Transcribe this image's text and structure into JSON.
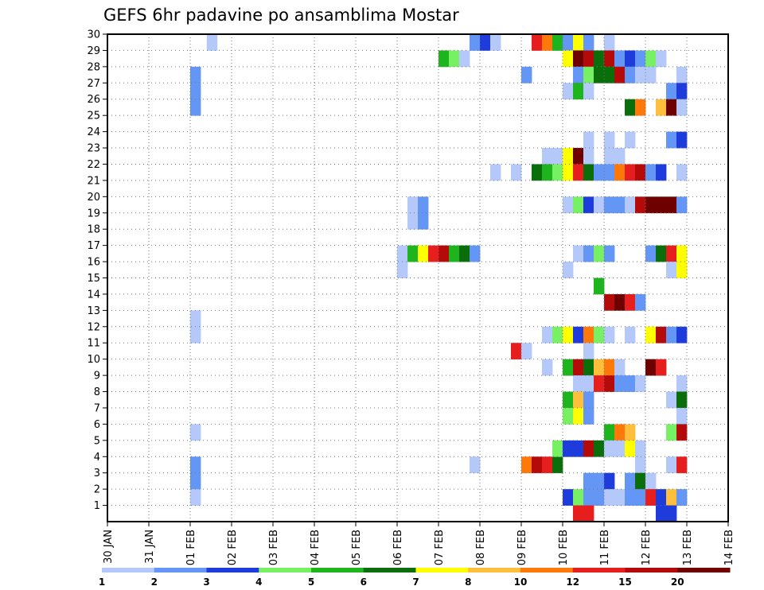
{
  "chart_data": {
    "type": "heatmap",
    "title": "GEFS 6hr padavine po ansamblima Mostar",
    "x_tick_labels": [
      "30 JAN",
      "31 JAN",
      "01 FEB",
      "02 FEB",
      "03 FEB",
      "04 FEB",
      "05 FEB",
      "06 FEB",
      "07 FEB",
      "08 FEB",
      "09 FEB",
      "10 FEB",
      "11 FEB",
      "12 FEB",
      "13 FEB",
      "14 FEB"
    ],
    "y_tick_labels": [
      "1",
      "2",
      "3",
      "4",
      "5",
      "6",
      "7",
      "8",
      "9",
      "10",
      "11",
      "12",
      "13",
      "14",
      "15",
      "16",
      "17",
      "18",
      "19",
      "20",
      "21",
      "22",
      "23",
      "24",
      "25",
      "26",
      "27",
      "28",
      "29",
      "30"
    ],
    "ylim": [
      0,
      30
    ],
    "grid": true,
    "colorbar": {
      "labels": [
        "1",
        "2",
        "3",
        "4",
        "5",
        "6",
        "7",
        "8",
        "10",
        "12",
        "15",
        "20"
      ],
      "colors": [
        "#b4c8fa",
        "#6496f5",
        "#1e3cdc",
        "#78f064",
        "#1eb41e",
        "#0a6e0a",
        "#ffff00",
        "#ffbe3c",
        "#ff780a",
        "#e61e1e",
        "#b40a0a",
        "#6e0000"
      ]
    },
    "cells": [
      [
        2.4,
        29,
        1
      ],
      [
        2.0,
        27,
        2
      ],
      [
        2.0,
        26,
        2
      ],
      [
        2.0,
        25,
        2
      ],
      [
        2.0,
        12,
        1
      ],
      [
        2.0,
        11,
        1
      ],
      [
        2.0,
        5,
        1
      ],
      [
        2.0,
        3,
        2
      ],
      [
        2.0,
        2,
        2
      ],
      [
        2.0,
        1,
        1
      ],
      [
        7.0,
        16,
        1
      ],
      [
        7.0,
        15,
        1
      ],
      [
        7.25,
        19,
        1
      ],
      [
        7.25,
        18,
        1
      ],
      [
        7.5,
        19,
        2
      ],
      [
        7.5,
        18,
        2
      ],
      [
        7.25,
        16,
        5
      ],
      [
        7.5,
        16,
        7
      ],
      [
        7.75,
        16,
        10
      ],
      [
        8.0,
        16,
        11
      ],
      [
        8.25,
        16,
        5
      ],
      [
        8.5,
        16,
        6
      ],
      [
        8.75,
        16,
        2
      ],
      [
        8.0,
        28,
        5
      ],
      [
        8.25,
        28,
        4
      ],
      [
        8.5,
        28,
        1
      ],
      [
        8.75,
        29,
        2
      ],
      [
        9.0,
        29,
        3
      ],
      [
        9.25,
        29,
        1
      ],
      [
        8.75,
        3,
        1
      ],
      [
        9.25,
        21,
        1
      ],
      [
        9.75,
        21,
        1
      ],
      [
        9.75,
        10,
        10
      ],
      [
        10.0,
        10,
        1
      ],
      [
        10.0,
        3,
        9
      ],
      [
        10.25,
        3,
        11
      ],
      [
        10.5,
        3,
        10
      ],
      [
        10.75,
        3,
        6
      ],
      [
        10.0,
        27,
        2
      ],
      [
        10.25,
        29,
        10
      ],
      [
        10.5,
        29,
        9
      ],
      [
        10.75,
        29,
        5
      ],
      [
        11.0,
        29,
        2
      ],
      [
        11.25,
        29,
        7
      ],
      [
        11.5,
        29,
        2
      ],
      [
        12.0,
        29,
        1
      ],
      [
        11.0,
        28,
        7
      ],
      [
        11.25,
        28,
        12
      ],
      [
        11.5,
        28,
        11
      ],
      [
        11.75,
        28,
        6
      ],
      [
        12.0,
        28,
        11
      ],
      [
        12.25,
        28,
        2
      ],
      [
        12.5,
        28,
        3
      ],
      [
        12.75,
        28,
        2
      ],
      [
        13.0,
        28,
        4
      ],
      [
        13.25,
        28,
        1
      ],
      [
        11.25,
        27,
        2
      ],
      [
        11.5,
        27,
        4
      ],
      [
        11.75,
        27,
        6
      ],
      [
        12.0,
        27,
        6
      ],
      [
        12.25,
        27,
        11
      ],
      [
        12.5,
        27,
        2
      ],
      [
        12.75,
        27,
        1
      ],
      [
        13.0,
        27,
        1
      ],
      [
        13.75,
        27,
        1
      ],
      [
        11.0,
        26,
        1
      ],
      [
        11.25,
        26,
        5
      ],
      [
        11.5,
        26,
        1
      ],
      [
        13.5,
        26,
        2
      ],
      [
        13.75,
        26,
        3
      ],
      [
        12.5,
        25,
        6
      ],
      [
        12.75,
        25,
        9
      ],
      [
        13.25,
        25,
        8
      ],
      [
        13.5,
        25,
        12
      ],
      [
        13.75,
        25,
        1
      ],
      [
        11.5,
        23,
        1
      ],
      [
        12.0,
        23,
        1
      ],
      [
        12.5,
        23,
        1
      ],
      [
        13.5,
        23,
        2
      ],
      [
        13.75,
        23,
        3
      ],
      [
        10.5,
        22,
        1
      ],
      [
        10.75,
        22,
        1
      ],
      [
        11.0,
        22,
        7
      ],
      [
        11.25,
        22,
        12
      ],
      [
        11.5,
        22,
        1
      ],
      [
        12.0,
        22,
        1
      ],
      [
        12.25,
        22,
        1
      ],
      [
        10.25,
        21,
        6
      ],
      [
        10.5,
        21,
        5
      ],
      [
        10.75,
        21,
        4
      ],
      [
        11.0,
        21,
        7
      ],
      [
        11.25,
        21,
        10
      ],
      [
        11.5,
        21,
        6
      ],
      [
        11.75,
        21,
        2
      ],
      [
        12.0,
        21,
        2
      ],
      [
        12.25,
        21,
        9
      ],
      [
        12.5,
        21,
        10
      ],
      [
        12.75,
        21,
        11
      ],
      [
        13.0,
        21,
        2
      ],
      [
        13.25,
        21,
        3
      ],
      [
        13.75,
        21,
        1
      ],
      [
        11.0,
        19,
        1
      ],
      [
        11.25,
        19,
        4
      ],
      [
        11.5,
        19,
        3
      ],
      [
        11.75,
        19,
        1
      ],
      [
        12.0,
        19,
        2
      ],
      [
        12.25,
        19,
        2
      ],
      [
        12.5,
        19,
        1
      ],
      [
        12.75,
        19,
        11
      ],
      [
        13.0,
        19,
        12
      ],
      [
        13.25,
        19,
        12
      ],
      [
        13.5,
        19,
        12
      ],
      [
        13.75,
        19,
        2
      ],
      [
        11.25,
        16,
        1
      ],
      [
        11.5,
        16,
        2
      ],
      [
        11.75,
        16,
        4
      ],
      [
        12.0,
        16,
        2
      ],
      [
        13.0,
        16,
        2
      ],
      [
        13.25,
        16,
        6
      ],
      [
        13.5,
        16,
        10
      ],
      [
        13.75,
        16,
        7
      ],
      [
        11.0,
        15,
        1
      ],
      [
        11.75,
        14,
        5
      ],
      [
        13.5,
        15,
        1
      ],
      [
        13.75,
        15,
        7
      ],
      [
        12.0,
        13,
        11
      ],
      [
        12.25,
        13,
        12
      ],
      [
        12.5,
        13,
        10
      ],
      [
        12.75,
        13,
        2
      ],
      [
        10.5,
        11,
        1
      ],
      [
        10.75,
        11,
        4
      ],
      [
        11.0,
        11,
        7
      ],
      [
        11.25,
        11,
        3
      ],
      [
        11.5,
        11,
        9
      ],
      [
        11.75,
        11,
        4
      ],
      [
        12.0,
        11,
        1
      ],
      [
        12.5,
        11,
        1
      ],
      [
        13.0,
        11,
        7
      ],
      [
        13.25,
        11,
        11
      ],
      [
        13.5,
        11,
        2
      ],
      [
        13.75,
        11,
        3
      ],
      [
        11.5,
        10,
        1
      ],
      [
        10.5,
        9,
        1
      ],
      [
        11.0,
        9,
        5
      ],
      [
        11.25,
        9,
        11
      ],
      [
        11.5,
        9,
        6
      ],
      [
        11.75,
        9,
        8
      ],
      [
        12.0,
        9,
        9
      ],
      [
        12.25,
        9,
        1
      ],
      [
        13.0,
        9,
        12
      ],
      [
        13.25,
        9,
        10
      ],
      [
        11.25,
        8,
        1
      ],
      [
        11.5,
        8,
        1
      ],
      [
        11.75,
        8,
        10
      ],
      [
        12.0,
        8,
        11
      ],
      [
        12.25,
        8,
        2
      ],
      [
        12.5,
        8,
        2
      ],
      [
        12.75,
        8,
        1
      ],
      [
        13.75,
        8,
        1
      ],
      [
        11.0,
        7,
        5
      ],
      [
        11.25,
        7,
        8
      ],
      [
        11.5,
        7,
        2
      ],
      [
        13.5,
        7,
        1
      ],
      [
        13.75,
        7,
        6
      ],
      [
        11.0,
        6,
        4
      ],
      [
        11.25,
        6,
        7
      ],
      [
        11.5,
        6,
        2
      ],
      [
        13.75,
        6,
        1
      ],
      [
        12.0,
        5,
        5
      ],
      [
        12.25,
        5,
        9
      ],
      [
        12.5,
        5,
        8
      ],
      [
        13.5,
        5,
        4
      ],
      [
        13.75,
        5,
        11
      ],
      [
        10.75,
        4,
        4
      ],
      [
        11.0,
        4,
        3
      ],
      [
        11.25,
        4,
        3
      ],
      [
        11.5,
        4,
        11
      ],
      [
        11.75,
        4,
        6
      ],
      [
        12.0,
        4,
        1
      ],
      [
        12.25,
        4,
        1
      ],
      [
        12.5,
        4,
        7
      ],
      [
        12.75,
        4,
        1
      ],
      [
        12.75,
        3,
        1
      ],
      [
        13.5,
        3,
        1
      ],
      [
        13.75,
        3,
        10
      ],
      [
        11.5,
        2,
        2
      ],
      [
        11.75,
        2,
        2
      ],
      [
        12.0,
        2,
        3
      ],
      [
        12.5,
        2,
        2
      ],
      [
        12.75,
        2,
        6
      ],
      [
        13.0,
        2,
        1
      ],
      [
        11.0,
        1,
        3
      ],
      [
        11.25,
        1,
        4
      ],
      [
        11.5,
        1,
        2
      ],
      [
        11.75,
        1,
        2
      ],
      [
        12.0,
        1,
        1
      ],
      [
        12.25,
        1,
        1
      ],
      [
        12.5,
        1,
        2
      ],
      [
        12.75,
        1,
        2
      ],
      [
        13.0,
        1,
        10
      ],
      [
        13.25,
        1,
        3
      ],
      [
        13.5,
        1,
        8
      ],
      [
        13.75,
        1,
        2
      ],
      [
        11.25,
        0,
        10
      ],
      [
        11.5,
        0,
        10
      ],
      [
        13.25,
        0,
        3
      ],
      [
        13.5,
        0,
        3
      ]
    ]
  }
}
